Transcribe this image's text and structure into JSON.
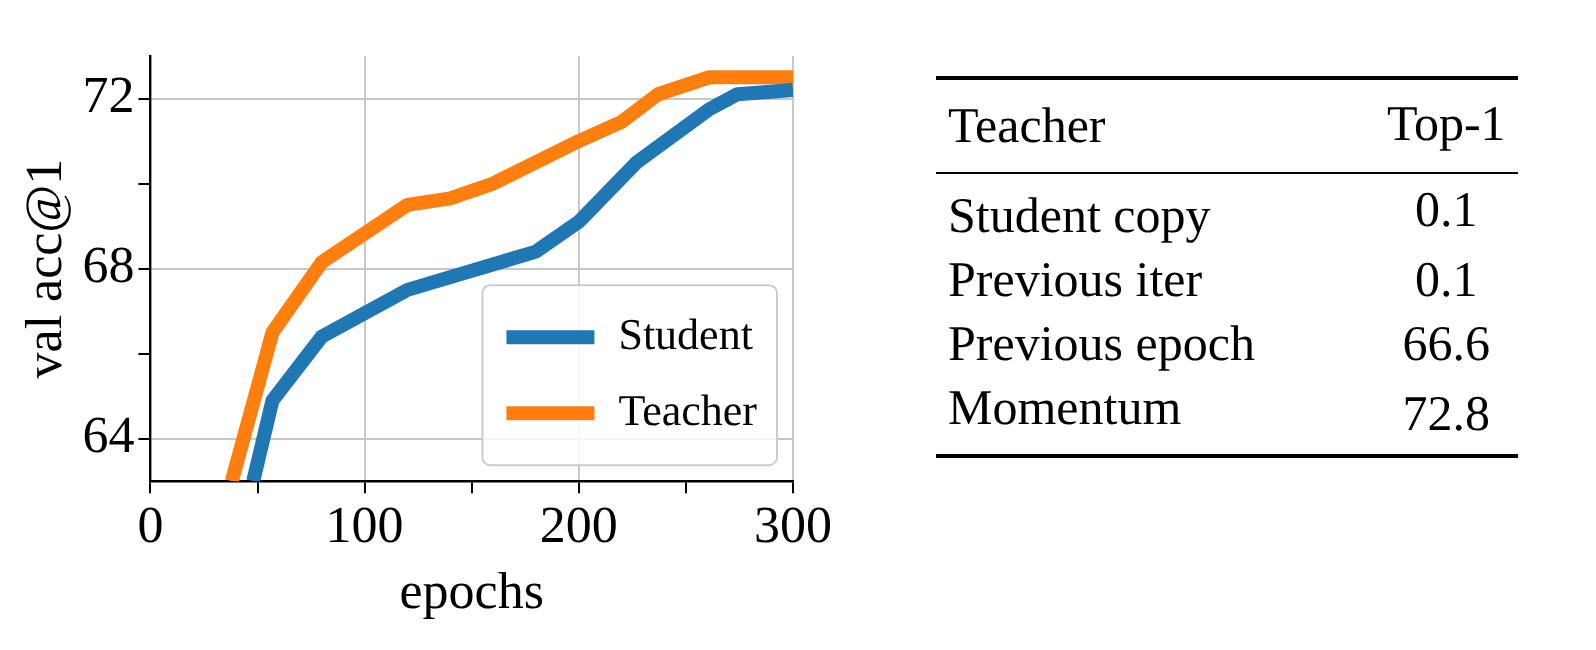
{
  "chart_data": [
    {
      "type": "line",
      "xlabel": "epochs",
      "ylabel": "val acc@1",
      "xlim": [
        0,
        300
      ],
      "ylim": [
        63,
        73
      ],
      "xticks": [
        0,
        {
          "value": 50,
          "label": null
        },
        100,
        {
          "value": 150,
          "label": null
        },
        200,
        {
          "value": 250,
          "label": null
        },
        300
      ],
      "yticks": [
        64,
        {
          "value": 66,
          "label": null
        },
        68,
        {
          "value": 70,
          "label": null
        },
        72
      ],
      "grid": true,
      "legend": "bottom right",
      "line_style": "solid",
      "marker": "none",
      "series": [
        {
          "name": "Student",
          "color": "#1f77b4",
          "x": [
            48,
            57,
            80,
            120,
            180,
            200,
            227,
            261,
            274,
            300
          ],
          "values": [
            63,
            64.9,
            66.4,
            67.5,
            68.4,
            69.1,
            70.5,
            71.75,
            72.1,
            72.2
          ]
        },
        {
          "name": "Teacher",
          "color": "#ff7f0e",
          "x": [
            38,
            57,
            80,
            120,
            140,
            160,
            200,
            220,
            237,
            261,
            300
          ],
          "values": [
            63,
            66.5,
            68.15,
            69.5,
            69.65,
            70,
            71,
            71.45,
            72.1,
            72.5,
            72.5
          ]
        }
      ]
    },
    {
      "type": "other",
      "xlabel": "Teacher",
      "categories": [
        "Student copy",
        "Previous iter",
        "Previous epoch",
        "Momentum"
      ],
      "series": [
        {
          "name": "Top-1",
          "values": [
            0.1,
            0.1,
            66.6,
            72.8
          ]
        }
      ],
      "data_labels": true
    }
  ]
}
